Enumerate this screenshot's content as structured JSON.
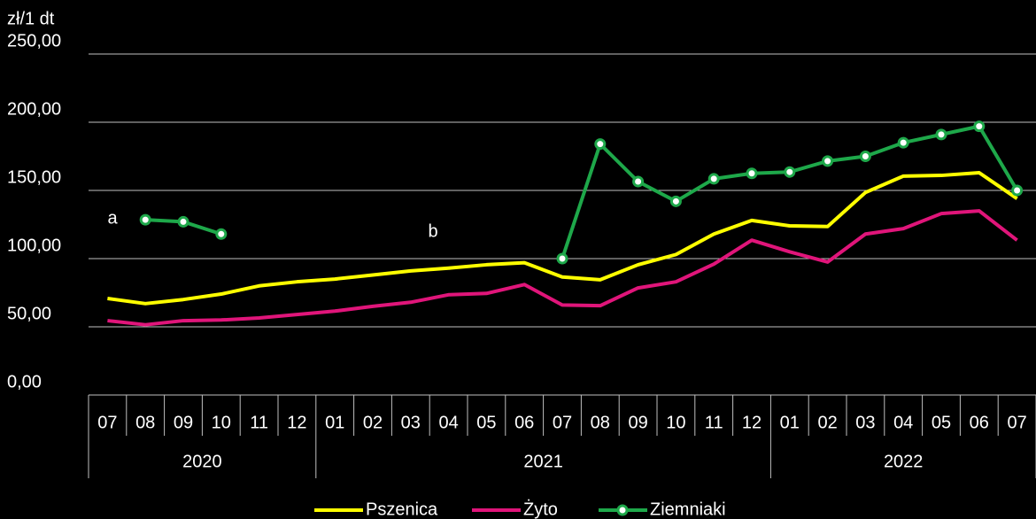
{
  "chart_data": {
    "type": "line",
    "y_axis_label": "zł/1 dt",
    "categories": [
      "07",
      "08",
      "09",
      "10",
      "11",
      "12",
      "01",
      "02",
      "03",
      "04",
      "05",
      "06",
      "07",
      "08",
      "09",
      "10",
      "11",
      "12",
      "01",
      "02",
      "03",
      "04",
      "05",
      "06",
      "07"
    ],
    "groups": [
      {
        "label": "2020",
        "count": 6
      },
      {
        "label": "2021",
        "count": 12
      },
      {
        "label": "2022",
        "count": 7
      }
    ],
    "series": [
      {
        "name": "Pszenica",
        "color": "#ffff00",
        "marker": false,
        "values": [
          70.8,
          67,
          70,
          74,
          80,
          83,
          85,
          88,
          91,
          93,
          95.5,
          97,
          86.5,
          84.5,
          95.5,
          103,
          118,
          128,
          124,
          123.5,
          148.5,
          160.5,
          161,
          163,
          144
        ]
      },
      {
        "name": "Żyto",
        "color": "#e0157a",
        "marker": false,
        "values": [
          54.5,
          51.5,
          54.5,
          55,
          56.5,
          59,
          61.5,
          65,
          68,
          73.5,
          74.5,
          81,
          66,
          65.5,
          78.5,
          83,
          96,
          113.5,
          105,
          97.5,
          118,
          122,
          133,
          135,
          113.5
        ]
      },
      {
        "name": "Ziemniaki",
        "color": "#1ea84a",
        "marker": true,
        "values": [
          null,
          128.5,
          127,
          118,
          null,
          null,
          null,
          null,
          null,
          null,
          null,
          null,
          100,
          184,
          156.5,
          142,
          158.5,
          162.5,
          163.5,
          171.5,
          175,
          185,
          191,
          197,
          150
        ]
      }
    ],
    "annotations": [
      "a",
      "b"
    ],
    "ylim": [
      0,
      250
    ],
    "yticks": [
      {
        "value": 0,
        "label": "0,00"
      },
      {
        "value": 50,
        "label": "50,00"
      },
      {
        "value": 100,
        "label": "100,00"
      },
      {
        "value": 150,
        "label": "150,00"
      },
      {
        "value": 200,
        "label": "200,00"
      },
      {
        "value": 250,
        "label": "250,00"
      }
    ],
    "grid": true
  }
}
